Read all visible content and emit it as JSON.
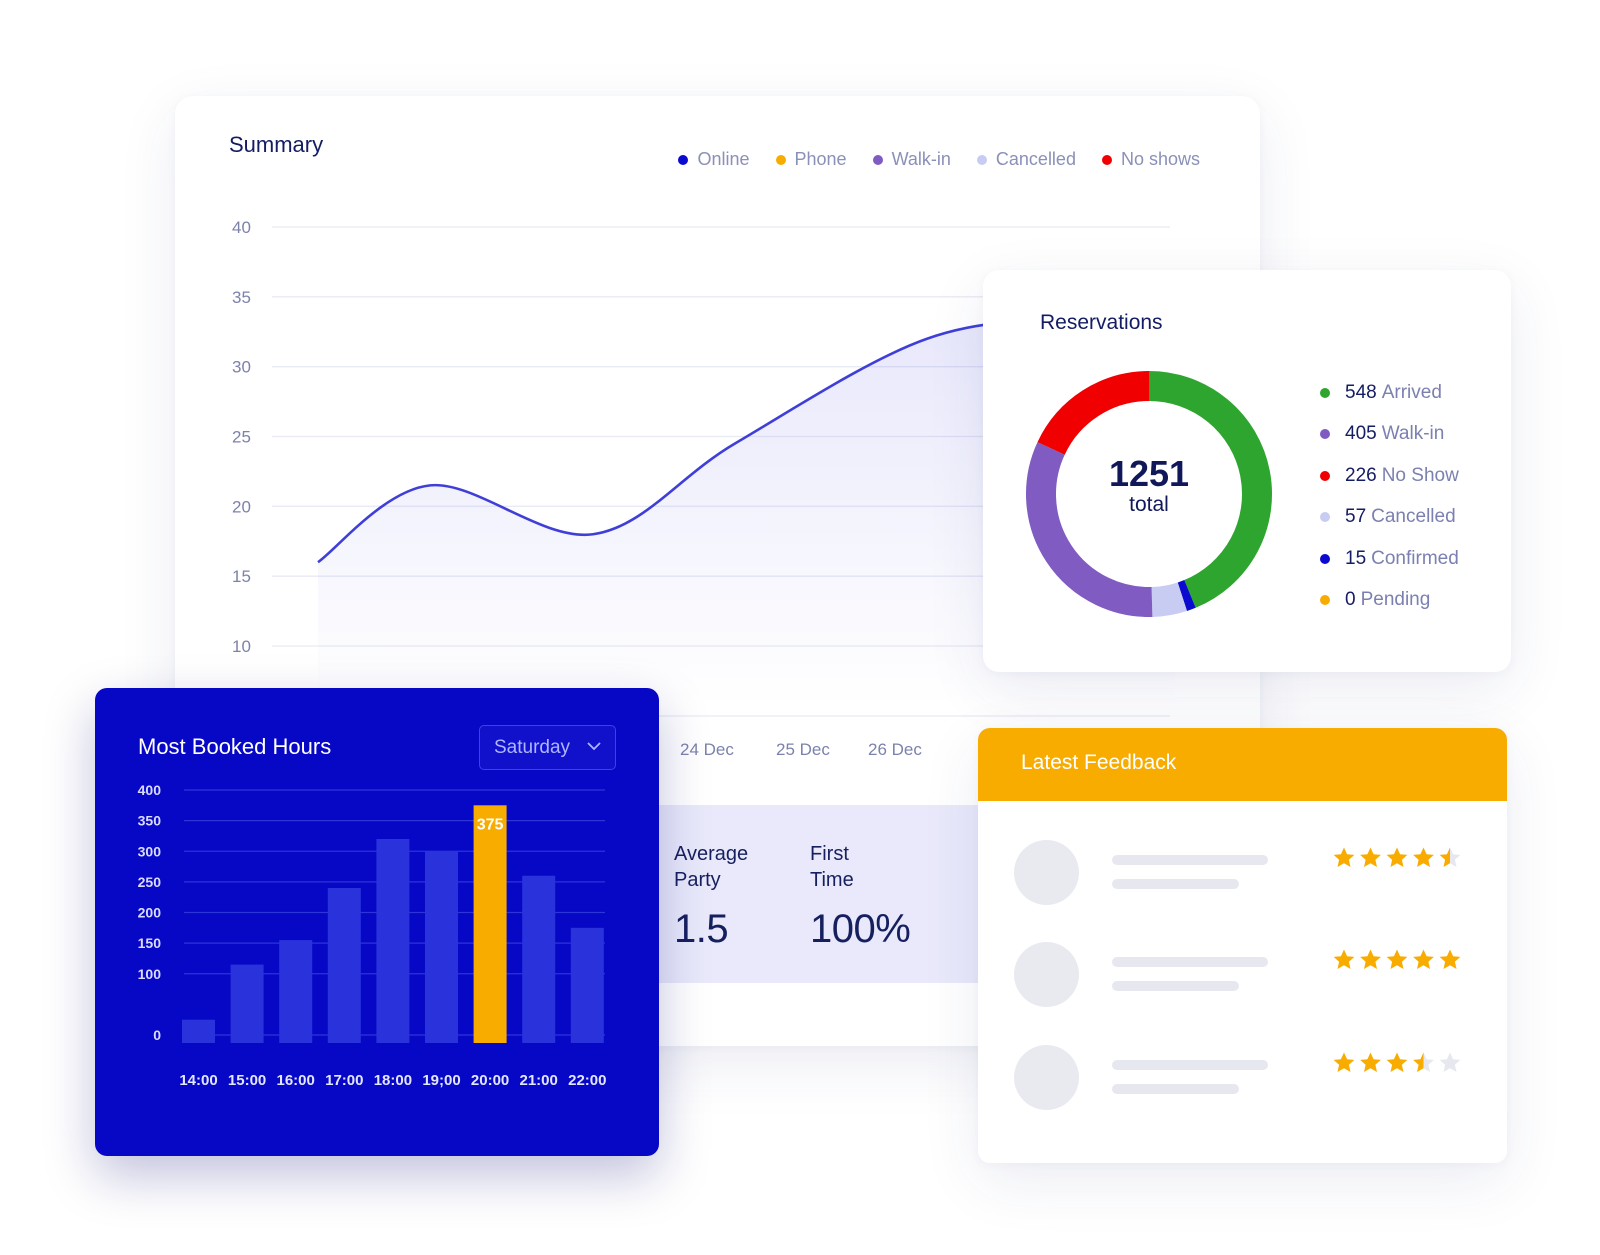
{
  "summary": {
    "title": "Summary",
    "legend": [
      {
        "label": "Online",
        "color": "#0a0ad0"
      },
      {
        "label": "Phone",
        "color": "#f8ac00"
      },
      {
        "label": "Walk-in",
        "color": "#7f5bc2"
      },
      {
        "label": "Cancelled",
        "color": "#c8ccf2"
      },
      {
        "label": "No shows",
        "color": "#f00000"
      }
    ],
    "y_ticks": [
      "40",
      "35",
      "30",
      "25",
      "20",
      "15",
      "10"
    ],
    "x_ticks": [
      "24 Dec",
      "25 Dec",
      "26 Dec"
    ],
    "stats": [
      {
        "label": "Average\nParty",
        "value": "1.5"
      },
      {
        "label": "First\nTime",
        "value": "100%"
      }
    ]
  },
  "reservations": {
    "title": "Reservations",
    "total": "1251",
    "total_label": "total",
    "items": [
      {
        "count": "548",
        "label": "Arrived",
        "color": "#2ea52e"
      },
      {
        "count": "405",
        "label": "Walk-in",
        "color": "#7f5bc2"
      },
      {
        "count": "226",
        "label": "No Show",
        "color": "#f00000"
      },
      {
        "count": "57",
        "label": "Cancelled",
        "color": "#c8ccf2"
      },
      {
        "count": "15",
        "label": "Confirmed",
        "color": "#0a0ad0"
      },
      {
        "count": "0",
        "label": "Pending",
        "color": "#f8ac00"
      }
    ]
  },
  "booked": {
    "title": "Most Booked Hours",
    "day_selected": "Saturday",
    "colors": {
      "bar": "#2a32dc",
      "highlight": "#f8ac00",
      "background": "#0707c6"
    }
  },
  "feedback": {
    "title": "Latest Feedback",
    "ratings": [
      4.5,
      5,
      3.5
    ],
    "star_color": "#f8ac00",
    "empty_star_color": "#e7e8ef"
  },
  "chart_data": [
    {
      "type": "line",
      "title": "Summary",
      "series": [
        {
          "name": "Online",
          "x": [
            0,
            1,
            2,
            3,
            4,
            5,
            6
          ],
          "values": [
            16,
            21.5,
            18,
            24.5,
            32,
            33,
            30
          ]
        }
      ],
      "ylim": [
        10,
        40
      ],
      "y_ticks": [
        40,
        35,
        30,
        25,
        20,
        15,
        10
      ],
      "x_tick_labels": [
        "24 Dec",
        "25 Dec",
        "26 Dec"
      ],
      "grid": true,
      "legend": "top-right"
    },
    {
      "type": "pie",
      "title": "Reservations",
      "categories": [
        "Arrived",
        "Walk-in",
        "No Show",
        "Cancelled",
        "Confirmed",
        "Pending"
      ],
      "values": [
        548,
        405,
        226,
        57,
        15,
        0
      ]
    },
    {
      "type": "bar",
      "title": "Most Booked Hours",
      "categories": [
        "14:00",
        "15:00",
        "16:00",
        "17:00",
        "18:00",
        "19;00",
        "20:00",
        "21:00",
        "22:00"
      ],
      "values": [
        25,
        115,
        155,
        240,
        320,
        300,
        375,
        260,
        175
      ],
      "highlight_index": 6,
      "data_labels": {
        "6": "375"
      },
      "y_ticks": [
        400,
        350,
        300,
        250,
        200,
        150,
        100,
        0
      ],
      "ylim": [
        0,
        400
      ],
      "grid": true
    }
  ]
}
